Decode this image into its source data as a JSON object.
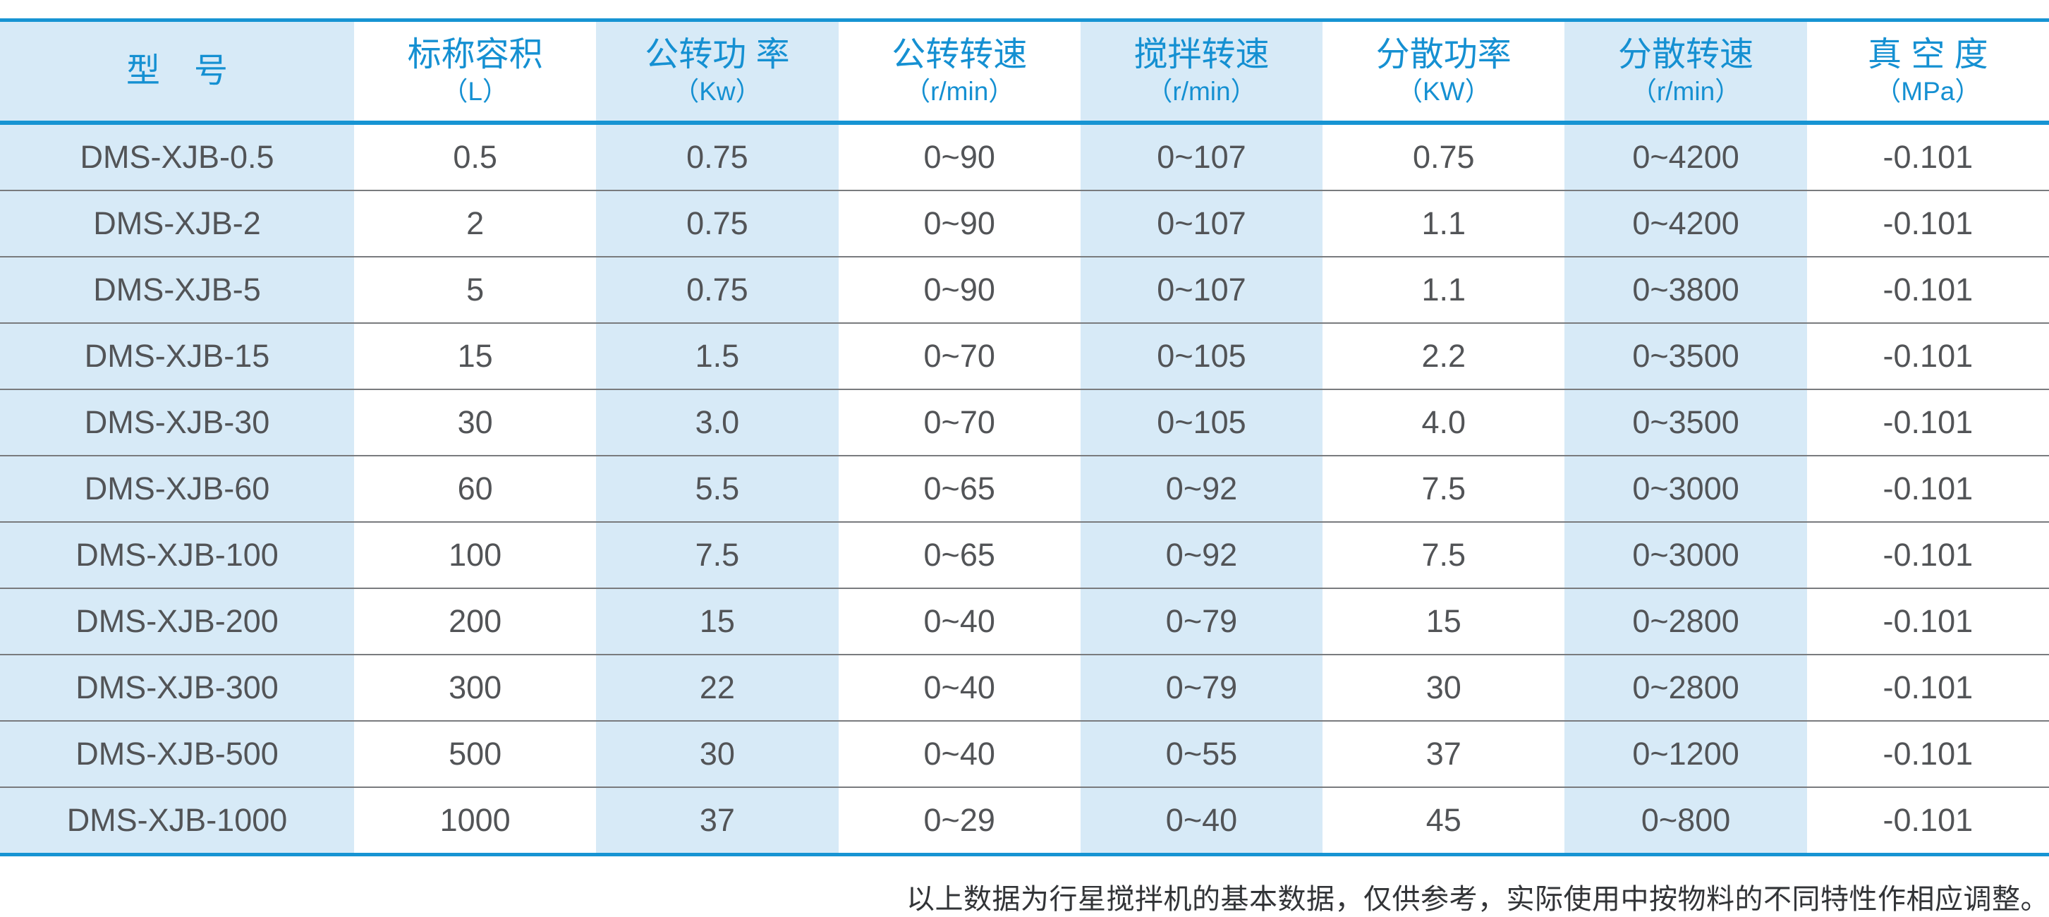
{
  "table": {
    "columns": [
      {
        "label": "型　号",
        "unit": ""
      },
      {
        "label": "标称容积",
        "unit": "（L）"
      },
      {
        "label": "公转功 率",
        "unit": "（Kw）"
      },
      {
        "label": "公转转速",
        "unit": "（r/min）"
      },
      {
        "label": "搅拌转速",
        "unit": "（r/min）"
      },
      {
        "label": "分散功率",
        "unit": "（KW）"
      },
      {
        "label": "分散转速",
        "unit": "（r/min）"
      },
      {
        "label": "真 空 度",
        "unit": "（MPa）"
      }
    ],
    "rows": [
      [
        "DMS-XJB-0.5",
        "0.5",
        "0.75",
        "0~90",
        "0~107",
        "0.75",
        "0~4200",
        "-0.101"
      ],
      [
        "DMS-XJB-2",
        "2",
        "0.75",
        "0~90",
        "0~107",
        "1.1",
        "0~4200",
        "-0.101"
      ],
      [
        "DMS-XJB-5",
        "5",
        "0.75",
        "0~90",
        "0~107",
        "1.1",
        "0~3800",
        "-0.101"
      ],
      [
        "DMS-XJB-15",
        "15",
        "1.5",
        "0~70",
        "0~105",
        "2.2",
        "0~3500",
        "-0.101"
      ],
      [
        "DMS-XJB-30",
        "30",
        "3.0",
        "0~70",
        "0~105",
        "4.0",
        "0~3500",
        "-0.101"
      ],
      [
        "DMS-XJB-60",
        "60",
        "5.5",
        "0~65",
        "0~92",
        "7.5",
        "0~3000",
        "-0.101"
      ],
      [
        "DMS-XJB-100",
        "100",
        "7.5",
        "0~65",
        "0~92",
        "7.5",
        "0~3000",
        "-0.101"
      ],
      [
        "DMS-XJB-200",
        "200",
        "15",
        "0~40",
        "0~79",
        "15",
        "0~2800",
        "-0.101"
      ],
      [
        "DMS-XJB-300",
        "300",
        "22",
        "0~40",
        "0~79",
        "30",
        "0~2800",
        "-0.101"
      ],
      [
        "DMS-XJB-500",
        "500",
        "30",
        "0~40",
        "0~55",
        "37",
        "0~1200",
        "-0.101"
      ],
      [
        "DMS-XJB-1000",
        "1000",
        "37",
        "0~29",
        "0~40",
        "45",
        "0~800",
        "-0.101"
      ]
    ]
  },
  "footnote": "以上数据为行星搅拌机的基本数据，仅供参考，实际使用中按物料的不同特性作相应调整。",
  "colors": {
    "accent_blue": "#1794d3",
    "header_text_blue": "#1590d2",
    "stripe_blue": "#d7eaf7",
    "data_text_gray": "#525457",
    "separator_gray": "#797b7e"
  }
}
